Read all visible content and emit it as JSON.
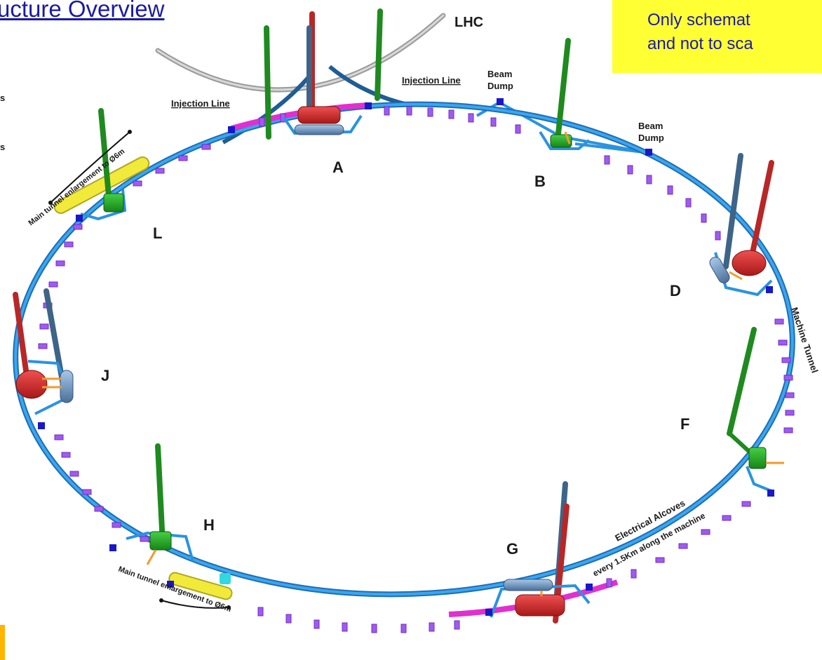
{
  "title": "ucture Overview",
  "note": {
    "lines": [
      "Only schemat",
      "and not to sca"
    ]
  },
  "labels": {
    "lhc": "LHC",
    "injection_line_left": "Injection Line",
    "injection_line_right": "Injection Line",
    "beam_dump_1a": "Beam",
    "beam_dump_1b": "Dump",
    "beam_dump_2a": "Beam",
    "beam_dump_2b": "Dump",
    "machine_tunnel": "Machine Tunnel",
    "electrical_alcoves_1": "Electrical Alcoves",
    "electrical_alcoves_2": "every 1.5Km along the machine",
    "enlargement_top": "Main tunnel enlargement to Ø6m",
    "enlargement_bottom": "Main tunnel enlargement to Ø6m",
    "edge_s1": "s",
    "edge_s2": "s"
  },
  "points": {
    "A": "A",
    "B": "B",
    "D": "D",
    "F": "F",
    "G": "G",
    "H": "H",
    "J": "J",
    "L": "L"
  },
  "colors": {
    "tunnel": "#2a93e0",
    "alcove": "#a259f2",
    "shaft_green": "#1f8a1f",
    "shaft_blue": "#3e6488",
    "shaft_red": "#b82727",
    "cavern_red": "#d62d2d",
    "magenta": "#e030d0",
    "yellow": "#f2ea3a",
    "title": "#1a1aa6"
  }
}
